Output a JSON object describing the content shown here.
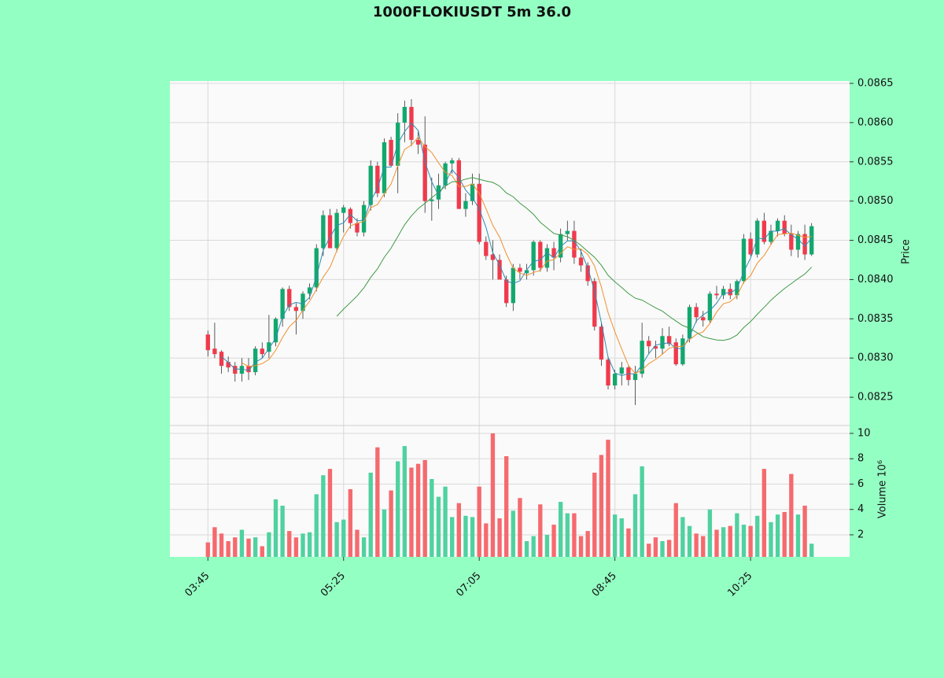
{
  "chart_data": {
    "type": "candlestick",
    "title": "1000FLOKIUSDT 5m 36.0",
    "ylabel": "Price",
    "volume_label": "Volume  10⁶",
    "x": [
      "03:45",
      "03:50",
      "03:55",
      "04:00",
      "04:05",
      "04:10",
      "04:15",
      "04:20",
      "04:25",
      "04:30",
      "04:35",
      "04:40",
      "04:45",
      "04:50",
      "04:55",
      "05:00",
      "05:05",
      "05:10",
      "05:15",
      "05:20",
      "05:25",
      "05:30",
      "05:35",
      "05:40",
      "05:45",
      "05:50",
      "05:55",
      "06:00",
      "06:05",
      "06:10",
      "06:15",
      "06:20",
      "06:25",
      "06:30",
      "06:35",
      "06:40",
      "06:45",
      "06:50",
      "06:55",
      "07:00",
      "07:05",
      "07:10",
      "07:15",
      "07:20",
      "07:25",
      "07:30",
      "07:35",
      "07:40",
      "07:45",
      "07:50",
      "07:55",
      "08:00",
      "08:05",
      "08:10",
      "08:15",
      "08:20",
      "08:25",
      "08:30",
      "08:35",
      "08:40",
      "08:45",
      "08:50",
      "08:55",
      "09:00",
      "09:05",
      "09:10",
      "09:15",
      "09:20",
      "09:25",
      "09:30",
      "09:35",
      "09:40",
      "09:45",
      "09:50",
      "09:55",
      "10:00",
      "10:05",
      "10:10",
      "10:15",
      "10:20",
      "10:25",
      "10:30",
      "10:35",
      "10:40",
      "10:45",
      "10:50",
      "10:55",
      "11:00",
      "11:05",
      "11:10"
    ],
    "open": [
      0.0833,
      0.08312,
      0.08308,
      0.08295,
      0.0829,
      0.0828,
      0.0829,
      0.08282,
      0.08312,
      0.08308,
      0.0832,
      0.0835,
      0.08388,
      0.08365,
      0.0836,
      0.08382,
      0.0839,
      0.0844,
      0.08482,
      0.0844,
      0.08485,
      0.0849,
      0.08472,
      0.0846,
      0.08495,
      0.08545,
      0.0851,
      0.08578,
      0.08545,
      0.086,
      0.0862,
      0.08578,
      0.08572,
      0.085,
      0.08502,
      0.0852,
      0.08548,
      0.08552,
      0.0849,
      0.085,
      0.08522,
      0.08448,
      0.08432,
      0.08425,
      0.084,
      0.0837,
      0.08415,
      0.08408,
      0.08412,
      0.08448,
      0.08415,
      0.0844,
      0.08428,
      0.08458,
      0.08462,
      0.08428,
      0.08418,
      0.08398,
      0.0834,
      0.08298,
      0.08265,
      0.0828,
      0.08288,
      0.08272,
      0.0828,
      0.08322,
      0.08315,
      0.08312,
      0.08328,
      0.0832,
      0.08292,
      0.08325,
      0.08365,
      0.08352,
      0.08348,
      0.08382,
      0.0838,
      0.08388,
      0.0838,
      0.08398,
      0.08452,
      0.08432,
      0.08475,
      0.08448,
      0.08462,
      0.08475,
      0.08458,
      0.08438,
      0.08458,
      0.08432
    ],
    "high": [
      0.08335,
      0.08345,
      0.0831,
      0.08302,
      0.08295,
      0.083,
      0.083,
      0.08315,
      0.0832,
      0.08355,
      0.08352,
      0.0839,
      0.08392,
      0.0837,
      0.08385,
      0.08395,
      0.08445,
      0.08488,
      0.0849,
      0.0849,
      0.08495,
      0.08492,
      0.08478,
      0.085,
      0.08552,
      0.0855,
      0.0858,
      0.08582,
      0.08612,
      0.08628,
      0.0863,
      0.0859,
      0.08608,
      0.0853,
      0.08535,
      0.0855,
      0.08555,
      0.08555,
      0.0851,
      0.08535,
      0.08535,
      0.08455,
      0.0845,
      0.08432,
      0.08405,
      0.0842,
      0.0842,
      0.0842,
      0.0845,
      0.0845,
      0.08445,
      0.08448,
      0.08465,
      0.08475,
      0.08475,
      0.08438,
      0.08422,
      0.08402,
      0.08345,
      0.08302,
      0.08285,
      0.08295,
      0.0829,
      0.0829,
      0.08345,
      0.08328,
      0.08322,
      0.08338,
      0.0834,
      0.08325,
      0.0833,
      0.08368,
      0.0837,
      0.0836,
      0.08385,
      0.08392,
      0.08392,
      0.08395,
      0.084,
      0.08458,
      0.0846,
      0.08478,
      0.08485,
      0.0847,
      0.08478,
      0.08482,
      0.0847,
      0.08462,
      0.0847,
      0.08472
    ],
    "low": [
      0.08302,
      0.083,
      0.0828,
      0.08282,
      0.0827,
      0.0827,
      0.08272,
      0.08278,
      0.083,
      0.083,
      0.08315,
      0.0834,
      0.0836,
      0.0833,
      0.0835,
      0.08375,
      0.08385,
      0.0843,
      0.0844,
      0.08435,
      0.0846,
      0.08465,
      0.08455,
      0.08455,
      0.08488,
      0.08505,
      0.08505,
      0.08545,
      0.0851,
      0.08575,
      0.0857,
      0.0856,
      0.08485,
      0.08475,
      0.0849,
      0.08515,
      0.08535,
      0.0849,
      0.0848,
      0.08495,
      0.08445,
      0.08425,
      0.084,
      0.084,
      0.08365,
      0.0836,
      0.084,
      0.084,
      0.08405,
      0.0841,
      0.0841,
      0.08412,
      0.08422,
      0.0845,
      0.0842,
      0.0841,
      0.08392,
      0.08335,
      0.0829,
      0.0826,
      0.0826,
      0.08265,
      0.08265,
      0.0824,
      0.08275,
      0.08305,
      0.083,
      0.08305,
      0.08315,
      0.0829,
      0.0829,
      0.0832,
      0.08345,
      0.0834,
      0.08345,
      0.08375,
      0.08375,
      0.08375,
      0.08375,
      0.08395,
      0.0843,
      0.08428,
      0.08445,
      0.08445,
      0.08455,
      0.08455,
      0.0843,
      0.08428,
      0.08425,
      0.0843
    ],
    "close": [
      0.0831,
      0.08305,
      0.0829,
      0.08288,
      0.0828,
      0.0829,
      0.08282,
      0.08312,
      0.08305,
      0.0832,
      0.0835,
      0.08388,
      0.08365,
      0.0836,
      0.08382,
      0.0839,
      0.0844,
      0.08482,
      0.0844,
      0.08485,
      0.08492,
      0.08472,
      0.0846,
      0.08495,
      0.08545,
      0.0851,
      0.08575,
      0.08545,
      0.086,
      0.0862,
      0.08578,
      0.08572,
      0.085,
      0.08502,
      0.0852,
      0.08548,
      0.08552,
      0.0849,
      0.085,
      0.08522,
      0.08448,
      0.0843,
      0.08425,
      0.084,
      0.0837,
      0.08415,
      0.0841,
      0.08412,
      0.08448,
      0.08415,
      0.0844,
      0.08428,
      0.08458,
      0.08462,
      0.08428,
      0.08418,
      0.08398,
      0.0834,
      0.08298,
      0.08265,
      0.0828,
      0.08288,
      0.08272,
      0.0828,
      0.08322,
      0.08315,
      0.08312,
      0.08328,
      0.08318,
      0.08292,
      0.08325,
      0.08365,
      0.08352,
      0.08348,
      0.08382,
      0.0838,
      0.08388,
      0.0838,
      0.08398,
      0.08452,
      0.08432,
      0.08475,
      0.08448,
      0.08462,
      0.08475,
      0.08458,
      0.08438,
      0.08458,
      0.08432,
      0.08468
    ],
    "volume": [
      1.4,
      2.6,
      2.1,
      1.5,
      1.8,
      2.4,
      1.7,
      1.8,
      1.1,
      2.2,
      4.8,
      4.3,
      2.3,
      1.8,
      2.1,
      2.2,
      5.2,
      6.7,
      7.2,
      3.0,
      3.2,
      5.6,
      2.4,
      1.8,
      6.9,
      8.9,
      4.0,
      5.5,
      7.8,
      9.0,
      7.3,
      7.6,
      7.9,
      6.4,
      5.0,
      5.8,
      3.4,
      4.5,
      3.5,
      3.4,
      5.8,
      2.9,
      10,
      3.3,
      8.2,
      3.9,
      4.9,
      1.5,
      1.9,
      4.4,
      2.0,
      2.8,
      4.6,
      3.7,
      3.7,
      1.9,
      2.3,
      6.9,
      8.3,
      9.5,
      3.6,
      3.3,
      2.5,
      5.2,
      7.4,
      1.3,
      1.8,
      1.5,
      1.6,
      4.5,
      3.4,
      2.7,
      2.1,
      1.9,
      4.0,
      2.4,
      2.6,
      2.7,
      3.7,
      2.8,
      2.7,
      3.5,
      7.2,
      3.0,
      3.6,
      3.8,
      6.8,
      3.6,
      4.3,
      1.3
    ],
    "up_color": "#12a86e",
    "down_color": "#f03a4c",
    "volume_up_color": "#4fd2a0",
    "volume_down_color": "#f56a6e",
    "mav": [
      {
        "period": 3,
        "color": "#2f8cb0"
      },
      {
        "period": 6,
        "color": "#f0902e"
      },
      {
        "period": 20,
        "color": "#3f9a45"
      }
    ],
    "ylim": [
      0.08214,
      0.08653
    ],
    "yticks": [
      0.0825,
      {
        "value": 0.083,
        "label": "0.0830"
      },
      0.0835,
      {
        "value": 0.084,
        "label": "0.0840"
      },
      0.0845,
      {
        "value": 0.085,
        "label": "0.0850"
      },
      0.0855,
      {
        "value": 0.086,
        "label": "0.0860"
      },
      0.0865
    ],
    "volume_ylim": [
      0.26,
      10.62
    ],
    "volume_yticks": [
      2,
      4,
      6,
      8,
      10
    ],
    "xticks": [
      "03:45",
      "05:25",
      "07:05",
      "08:45",
      "10:25"
    ],
    "grid": true
  }
}
